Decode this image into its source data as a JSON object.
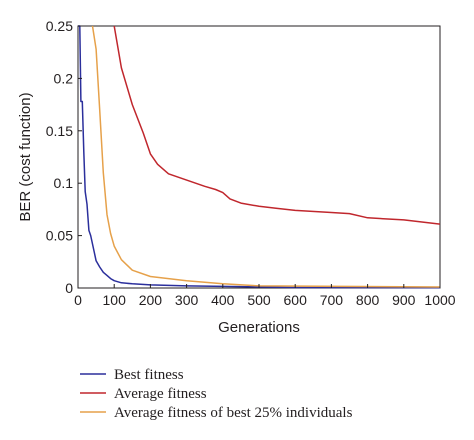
{
  "chart_data": {
    "type": "line",
    "title": "",
    "xlabel": "Generations",
    "ylabel": "BER (cost function)",
    "xlim": [
      0,
      1000
    ],
    "ylim": [
      0,
      0.25
    ],
    "xticks": [
      0,
      100,
      200,
      300,
      400,
      500,
      600,
      700,
      800,
      900,
      1000
    ],
    "yticks": [
      0,
      0.05,
      0.1,
      0.15,
      0.2,
      0.25
    ],
    "ytick_labels": [
      "0",
      "0.05",
      "0.1",
      "0.15",
      "0.2",
      "0.25"
    ],
    "grid": false,
    "legend_position": "bottom-left, below plot",
    "series": [
      {
        "name": "Best fitness",
        "color": "#2b2f9c",
        "x": [
          0,
          5,
          8,
          12,
          16,
          20,
          25,
          30,
          35,
          40,
          45,
          50,
          60,
          70,
          80,
          90,
          100,
          120,
          150,
          200,
          250,
          300,
          400,
          500,
          600,
          1000
        ],
        "y": [
          0.25,
          0.25,
          0.178,
          0.178,
          0.13,
          0.092,
          0.08,
          0.055,
          0.05,
          0.042,
          0.034,
          0.026,
          0.02,
          0.015,
          0.012,
          0.009,
          0.007,
          0.005,
          0.004,
          0.003,
          0.0025,
          0.002,
          0.0015,
          0.001,
          0.0005,
          0.0003
        ]
      },
      {
        "name": "Average fitness",
        "color": "#c0272d",
        "x": [
          100,
          120,
          150,
          180,
          200,
          220,
          250,
          300,
          350,
          380,
          400,
          420,
          450,
          500,
          550,
          600,
          700,
          750,
          800,
          900,
          950,
          1000
        ],
        "y": [
          0.25,
          0.21,
          0.175,
          0.148,
          0.128,
          0.118,
          0.109,
          0.103,
          0.097,
          0.094,
          0.091,
          0.085,
          0.081,
          0.078,
          0.076,
          0.074,
          0.072,
          0.071,
          0.067,
          0.065,
          0.063,
          0.061
        ]
      },
      {
        "name": "Average fitness of best 25% individuals",
        "color": "#e6a14a",
        "x": [
          40,
          50,
          60,
          70,
          80,
          90,
          100,
          120,
          150,
          200,
          250,
          300,
          400,
          500,
          1000
        ],
        "y": [
          0.25,
          0.228,
          0.17,
          0.11,
          0.07,
          0.052,
          0.04,
          0.027,
          0.017,
          0.011,
          0.009,
          0.007,
          0.004,
          0.002,
          0.001
        ]
      }
    ]
  }
}
